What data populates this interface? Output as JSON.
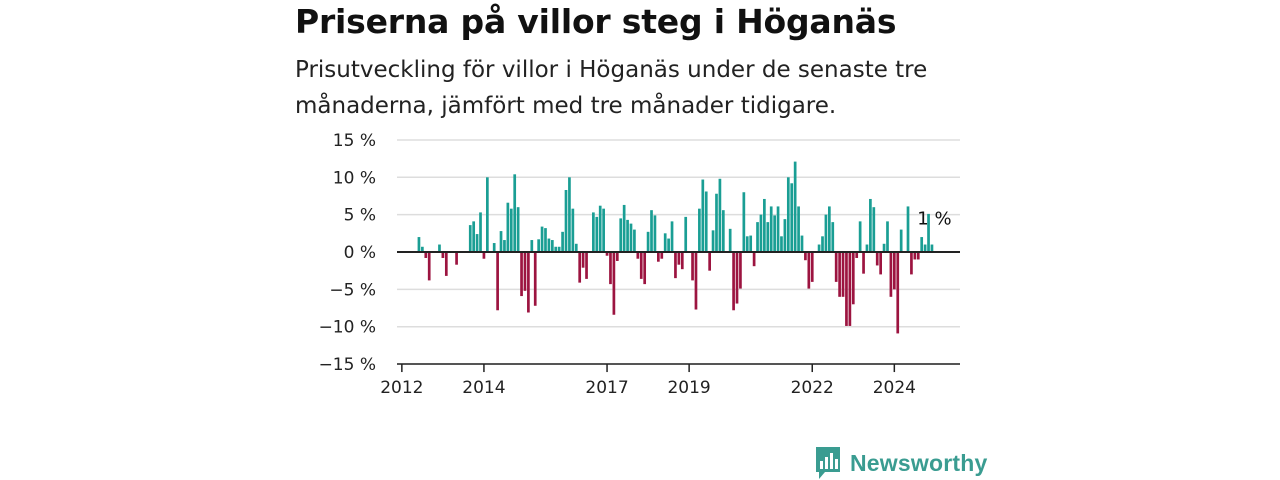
{
  "header": {
    "title": "Priserna på villor steg i Höganäs",
    "subtitle": "Prisutveckling för villor i Höganäs under de senaste tre månaderna, jämfört med tre månader tidigare."
  },
  "brand": {
    "name": "Newsworthy",
    "icon": "newsworthy-logo-icon",
    "color": "#3a9c91"
  },
  "chart_data": {
    "type": "bar",
    "title": "Priserna på villor steg i Höganäs",
    "subtitle": "Prisutveckling för villor i Höganäs under de senaste tre månaderna, jämfört med tre månader tidigare.",
    "xlabel": "",
    "ylabel": "",
    "x_start": "2012-01",
    "x_interval": "monthly",
    "x_ticks": [
      "2012",
      "2014",
      "2017",
      "2019",
      "2022",
      "2024"
    ],
    "y_ticks": [
      "15 %",
      "10 %",
      "5 %",
      "0 %",
      "−5 %",
      "−10 %",
      "−15 %"
    ],
    "ylim": [
      -15,
      15
    ],
    "unit": "%",
    "grid": true,
    "colors": {
      "positive": "#1a9e94",
      "negative": "#9c1440",
      "zero_line": "#222222",
      "grid": "#dddddd"
    },
    "last_value_label": "1 %",
    "values": [
      0,
      0,
      0,
      0,
      0,
      2,
      0.7,
      -0.8,
      -3.8,
      0,
      0,
      1,
      -0.8,
      -3.2,
      0,
      0,
      -1.7,
      0,
      0,
      0,
      3.6,
      4.1,
      2.4,
      5.3,
      -0.9,
      10,
      0,
      1.2,
      -7.8,
      2.8,
      1.6,
      6.6,
      5.8,
      10.4,
      6,
      -5.9,
      -5.2,
      -8.1,
      1.6,
      -7.2,
      1.7,
      3.4,
      3.2,
      1.8,
      1.6,
      0.7,
      0.7,
      2.7,
      8.3,
      10,
      5.8,
      1.1,
      -4.1,
      -2.1,
      -3.6,
      0,
      5.3,
      4.7,
      6.2,
      5.8,
      -0.5,
      -4.3,
      -8.4,
      -1.2,
      4.5,
      6.3,
      4.3,
      3.8,
      3,
      -0.9,
      -3.6,
      -4.3,
      2.7,
      5.6,
      4.9,
      -1.3,
      -0.9,
      2.5,
      1.8,
      4.1,
      -3.5,
      -1.7,
      -2.3,
      4.7,
      0,
      -3.8,
      -7.7,
      5.8,
      9.7,
      8.1,
      -2.5,
      2.9,
      7.8,
      9.8,
      5.6,
      0,
      3.1,
      -7.8,
      -6.9,
      -4.9,
      8,
      2.1,
      2.2,
      -1.9,
      4,
      5,
      7.1,
      4,
      6.1,
      4.9,
      6.1,
      2.1,
      4.4,
      10,
      9.2,
      12.1,
      6.1,
      2.2,
      -1.1,
      -4.9,
      -4,
      0,
      1,
      2.1,
      5,
      6.1,
      4,
      -4,
      -6,
      -6,
      -9.9,
      -9.9,
      -7,
      -0.8,
      4.1,
      -2.9,
      1,
      7.1,
      6,
      -1.8,
      -3,
      1.1,
      4.1,
      -6,
      -5,
      -10.9,
      3,
      0,
      6.1,
      -3,
      -1,
      -1,
      2,
      1,
      5.1,
      1
    ]
  }
}
